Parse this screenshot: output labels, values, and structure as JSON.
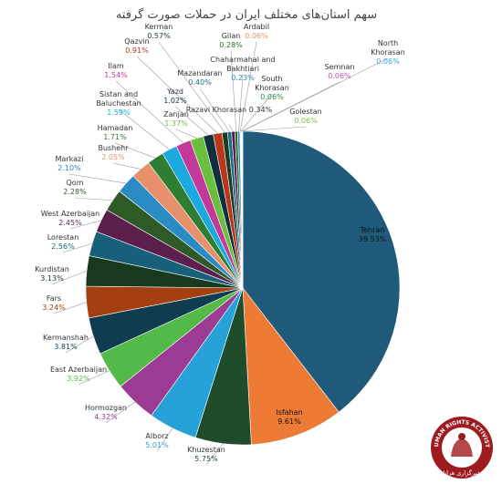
{
  "chart_data": {
    "type": "pie",
    "title": "سهم استان‌های مختلف ایران در حملات صورت گرفته",
    "slices": [
      {
        "label": "Tehran",
        "value": 39.53,
        "display": "39.53%",
        "color": "#1f5a7a"
      },
      {
        "label": "Isfahan",
        "value": 9.61,
        "display": "9.61%",
        "color": "#ed7b36"
      },
      {
        "label": "Khuzestan",
        "value": 5.75,
        "display": "5.75%",
        "color": "#1f4d2b"
      },
      {
        "label": "Alborz",
        "value": 5.01,
        "display": "5.01%",
        "color": "#26a2d9"
      },
      {
        "label": "Hormozgan",
        "value": 4.32,
        "display": "4.32%",
        "color": "#9b3b93"
      },
      {
        "label": "East Azerbaijan",
        "value": 3.92,
        "display": "3.92%",
        "color": "#53b948"
      },
      {
        "label": "Kermanshah",
        "value": 3.81,
        "display": "3.81%",
        "color": "#0f3d4f"
      },
      {
        "label": "Fars",
        "value": 3.24,
        "display": "3.24%",
        "color": "#a33f11"
      },
      {
        "label": "Kurdistan",
        "value": 3.13,
        "display": "3.13%",
        "color": "#173a1e"
      },
      {
        "label": "Lorestan",
        "value": 2.56,
        "display": "2.56%",
        "color": "#185f7a"
      },
      {
        "label": "West Azerbaijan",
        "value": 2.45,
        "display": "2.45%",
        "color": "#5c1f4d"
      },
      {
        "label": "Qom",
        "value": 2.28,
        "display": "2.28%",
        "color": "#2d5a27"
      },
      {
        "label": "Markazi",
        "value": 2.1,
        "display": "2.10%",
        "color": "#2b8bc4"
      },
      {
        "label": "Bushehr",
        "value": 2.05,
        "display": "2.05%",
        "color": "#e8906b"
      },
      {
        "label": "Hamadan",
        "value": 1.71,
        "display": "1.71%",
        "color": "#2e7d32"
      },
      {
        "label": "Sistan and Baluchestan",
        "value": 1.59,
        "display": "1.59%",
        "color": "#1ba9e0"
      },
      {
        "label": "Ilam",
        "value": 1.54,
        "display": "1.54%",
        "color": "#c2399a"
      },
      {
        "label": "Zanjan",
        "value": 1.37,
        "display": "1.37%",
        "color": "#6bbf3e"
      },
      {
        "label": "Yazd",
        "value": 1.02,
        "display": "1.02%",
        "color": "#0e2f3d"
      },
      {
        "label": "Qazvin",
        "value": 0.91,
        "display": "0.91%",
        "color": "#b8361b"
      },
      {
        "label": "Kerman",
        "value": 0.57,
        "display": "0.57%",
        "color": "#1c3d22"
      },
      {
        "label": "Mazandaran",
        "value": 0.4,
        "display": "0.40%",
        "color": "#1b6b8c"
      },
      {
        "label": "Razavi Khorasan",
        "value": 0.34,
        "display": "0.34%",
        "color": "#5a1a4a"
      },
      {
        "label": "Gilan",
        "value": 0.28,
        "display": "0.28%",
        "color": "#2a6e2a"
      },
      {
        "label": "Chaharmahal and Bakhtiari",
        "value": 0.23,
        "display": "0.23%",
        "color": "#2f8cc2"
      },
      {
        "label": "Ardabil",
        "value": 0.06,
        "display": "0.06%",
        "color": "#e8935f"
      },
      {
        "label": "South Khorasan",
        "value": 0.06,
        "display": "0.06%",
        "color": "#2e8b3a"
      },
      {
        "label": "Golestan",
        "value": 0.06,
        "display": "0.06%",
        "color": "#7ac143"
      },
      {
        "label": "Semnan",
        "value": 0.06,
        "display": "0.06%",
        "color": "#c44fb0"
      },
      {
        "label": "North Khorasan",
        "value": 0.06,
        "display": "0.06%",
        "color": "#3aa4dc"
      }
    ]
  },
  "logo": {
    "text_arc": "HUMAN RIGHTS ACTIVISTS",
    "text_bottom": "خبرگزاری هرانا",
    "color": "#9e1b20"
  }
}
